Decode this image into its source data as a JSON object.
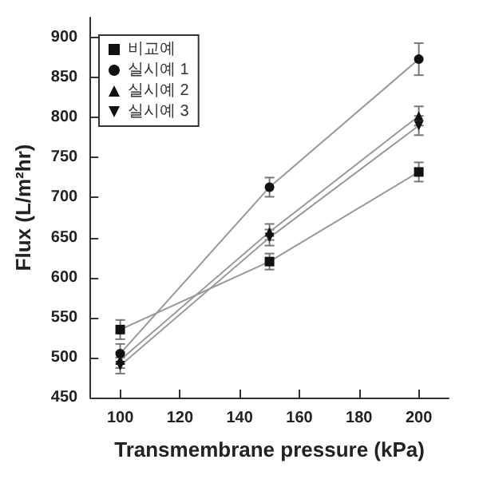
{
  "chart_data": {
    "type": "line",
    "xlabel": "Transmembrane pressure (kPa)",
    "ylabel": "Flux (L/m²hr)",
    "x": [
      100,
      150,
      200
    ],
    "xlim": [
      90,
      210
    ],
    "xticks": [
      100,
      120,
      140,
      160,
      180,
      200
    ],
    "ylim": [
      450,
      925
    ],
    "yticks": [
      450,
      500,
      550,
      600,
      650,
      700,
      750,
      800,
      850,
      900
    ],
    "grid": false,
    "legend": "top left",
    "series": [
      {
        "name": "비교예",
        "color": "#111111",
        "marker": "square",
        "values": [
          535,
          620,
          732
        ],
        "errors": [
          12,
          10,
          12
        ]
      },
      {
        "name": "실시예 1",
        "color": "#111111",
        "marker": "circle",
        "values": [
          505,
          713,
          873
        ],
        "errors": [
          12,
          12,
          20
        ]
      },
      {
        "name": "실시예 2",
        "color": "#111111",
        "marker": "triangle",
        "values": [
          497,
          657,
          802
        ],
        "errors": [
          10,
          10,
          12
        ]
      },
      {
        "name": "실시예 3",
        "color": "#111111",
        "marker": "triangle-down",
        "values": [
          490,
          650,
          790
        ],
        "errors": [
          10,
          10,
          12
        ]
      }
    ]
  }
}
